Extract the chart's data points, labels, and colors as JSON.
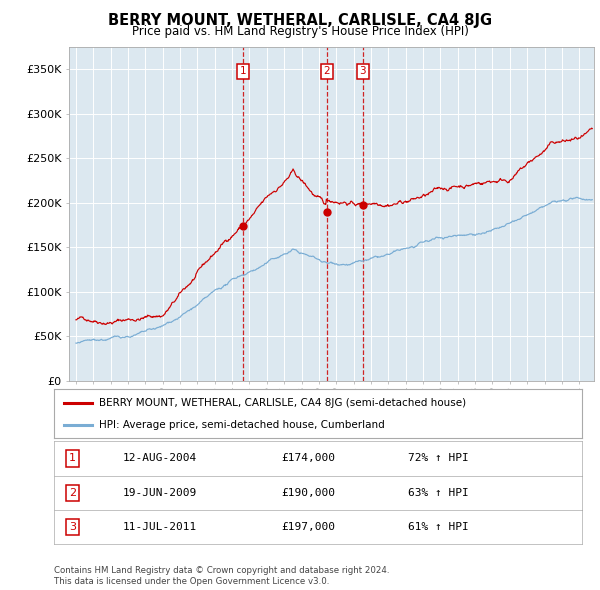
{
  "title": "BERRY MOUNT, WETHERAL, CARLISLE, CA4 8JG",
  "subtitle": "Price paid vs. HM Land Registry's House Price Index (HPI)",
  "plot_bg_color": "#dce8f0",
  "red_line_color": "#cc0000",
  "blue_line_color": "#7aadd4",
  "sale_marker_color": "#cc0000",
  "vline_color": "#cc0000",
  "ylim": [
    0,
    375000
  ],
  "yticks": [
    0,
    50000,
    100000,
    150000,
    200000,
    250000,
    300000,
    350000
  ],
  "ytick_labels": [
    "£0",
    "£50K",
    "£100K",
    "£150K",
    "£200K",
    "£250K",
    "£300K",
    "£350K"
  ],
  "sales": [
    {
      "label": "1",
      "date_num": 2004.617,
      "price": 174000,
      "pct": "72%",
      "date_str": "12-AUG-2004"
    },
    {
      "label": "2",
      "date_num": 2009.467,
      "price": 190000,
      "pct": "63%",
      "date_str": "19-JUN-2009"
    },
    {
      "label": "3",
      "date_num": 2011.525,
      "price": 197000,
      "pct": "61%",
      "date_str": "11-JUL-2011"
    }
  ],
  "legend_red": "BERRY MOUNT, WETHERAL, CARLISLE, CA4 8JG (semi-detached house)",
  "legend_blue": "HPI: Average price, semi-detached house, Cumberland",
  "footer": "Contains HM Land Registry data © Crown copyright and database right 2024.\nThis data is licensed under the Open Government Licence v3.0."
}
